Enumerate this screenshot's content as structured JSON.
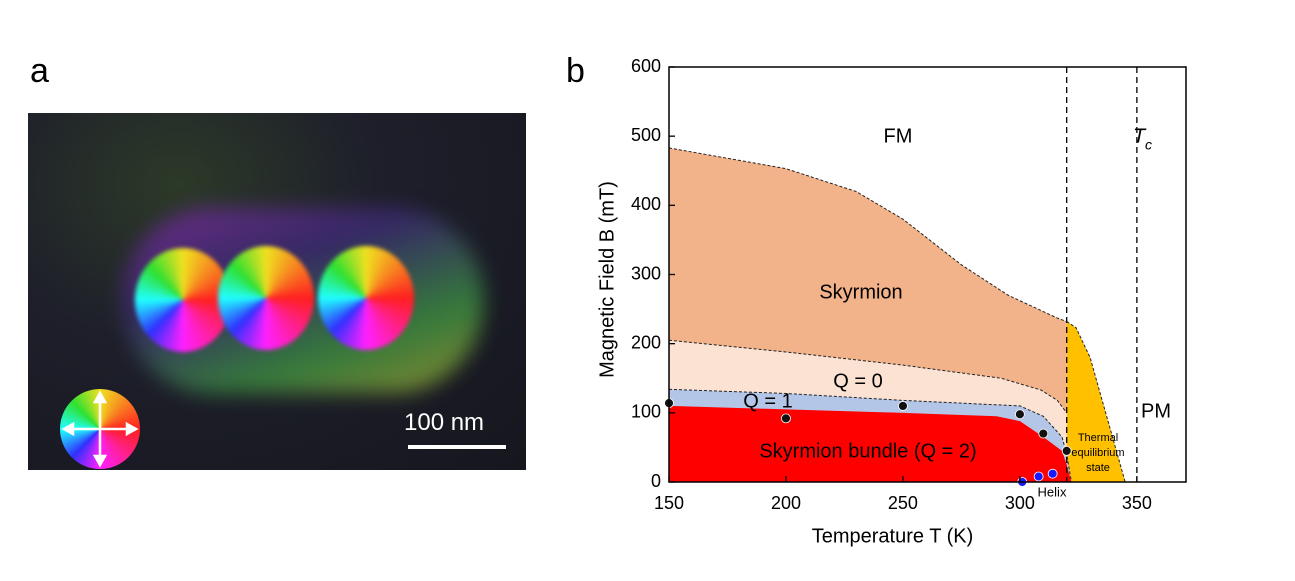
{
  "panel_a": {
    "label": "a",
    "scale_bar": "100 nm"
  },
  "chart_data": {
    "type": "area",
    "label": "b",
    "x_label": "Temperature T (K)",
    "y_label": "Magnetic Field B (mT)",
    "xlim": [
      150,
      371
    ],
    "ylim": [
      0,
      600
    ],
    "xticks": [
      150,
      200,
      250,
      300,
      350
    ],
    "yticks": [
      0,
      100,
      200,
      300,
      400,
      500,
      600
    ],
    "series": [
      {
        "color": "#ffc000",
        "dashed": true,
        "x": [
          320,
          324,
          330,
          335,
          340,
          345
        ],
        "values": [
          232,
          223,
          180,
          120,
          60,
          0
        ]
      },
      {
        "color": "#f2b38b",
        "dashed": true,
        "x": [
          150,
          200,
          230,
          250,
          275,
          295,
          316,
          320
        ],
        "values": [
          483,
          453,
          420,
          380,
          314,
          270,
          237,
          232
        ]
      },
      {
        "color": "#fbe2d3",
        "dashed": true,
        "x": [
          150,
          200,
          250,
          292,
          309,
          316,
          320
        ],
        "values": [
          205,
          188,
          169,
          150,
          133,
          118,
          100
        ]
      },
      {
        "color": "#b4c6e7",
        "dashed": true,
        "x": [
          150,
          200,
          250,
          300,
          310,
          318,
          320,
          322
        ],
        "values": [
          134,
          128,
          118,
          110,
          95,
          65,
          40,
          0
        ]
      },
      {
        "color": "#ff0000",
        "dashed": false,
        "x": [
          150,
          200,
          250,
          290,
          300,
          310,
          318,
          320,
          322
        ],
        "values": [
          110,
          105,
          100,
          95,
          88,
          65,
          45,
          25,
          0
        ]
      }
    ],
    "markers": [
      {
        "color": "#111111",
        "x": [
          150,
          200,
          250,
          300,
          310,
          320
        ],
        "values": [
          114,
          92,
          110,
          98,
          70,
          45
        ]
      },
      {
        "color": "#1a1aff",
        "x": [
          301,
          308,
          314
        ],
        "values": [
          0,
          8,
          12
        ]
      }
    ],
    "vlines": [
      320,
      350
    ],
    "annotations": [
      "FM",
      "Skyrmion",
      "Q = 0",
      "Q = 1",
      "Skyrmion bundle (Q = 2)",
      "Thermal",
      "equilibrium",
      "state",
      "Helix",
      "PM"
    ],
    "tc": {
      "symbol": "T",
      "subscript": "c"
    }
  }
}
